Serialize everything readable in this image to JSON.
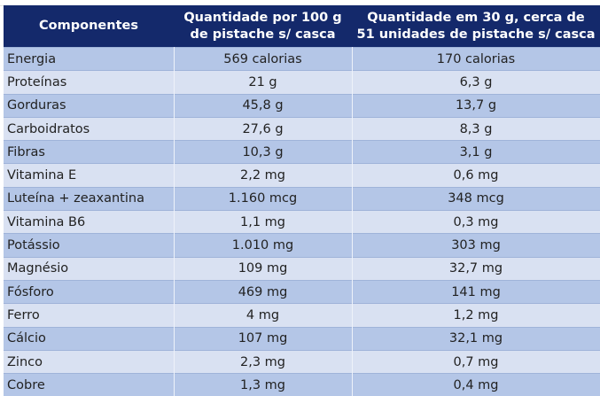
{
  "table": {
    "headers": [
      "Componentes",
      "Quantidade por 100 g de pistache s/ casca",
      "Quantidade em 30 g, cerca de 51 unidades de pistache s/ casca"
    ],
    "header_lines": [
      [
        "Componentes"
      ],
      [
        "Quantidade por 100 g",
        "de pistache s/ casca"
      ],
      [
        "Quantidade em 30 g, cerca de",
        "51 unidades de pistache s/ casca"
      ]
    ],
    "rows": [
      [
        "Energia",
        "569 calorias",
        "170 calorias"
      ],
      [
        "Proteínas",
        "21 g",
        "6,3 g"
      ],
      [
        "Gorduras",
        "45,8 g",
        "13,7 g"
      ],
      [
        "Carboidratos",
        "27,6 g",
        "8,3 g"
      ],
      [
        "Fibras",
        "10,3 g",
        "3,1 g"
      ],
      [
        "Vitamina E",
        "2,2 mg",
        "0,6 mg"
      ],
      [
        "Luteína + zeaxantina",
        "1.160 mcg",
        "348 mcg"
      ],
      [
        "Vitamina B6",
        "1,1 mg",
        "0,3 mg"
      ],
      [
        "Potássio",
        "1.010 mg",
        "303 mg"
      ],
      [
        "Magnésio",
        "109 mg",
        "32,7 mg"
      ],
      [
        "Fósforo",
        "469 mg",
        "141 mg"
      ],
      [
        "Ferro",
        "4 mg",
        "1,2 mg"
      ],
      [
        "Cálcio",
        "107 mg",
        "32,1 mg"
      ],
      [
        "Zinco",
        "2,3 mg",
        "0,7 mg"
      ],
      [
        "Cobre",
        "1,3 mg",
        "0,4 mg"
      ]
    ]
  },
  "colors": {
    "header_bg": "#14296b",
    "row_dark": "#b4c6e7",
    "row_light": "#d9e1f2"
  }
}
